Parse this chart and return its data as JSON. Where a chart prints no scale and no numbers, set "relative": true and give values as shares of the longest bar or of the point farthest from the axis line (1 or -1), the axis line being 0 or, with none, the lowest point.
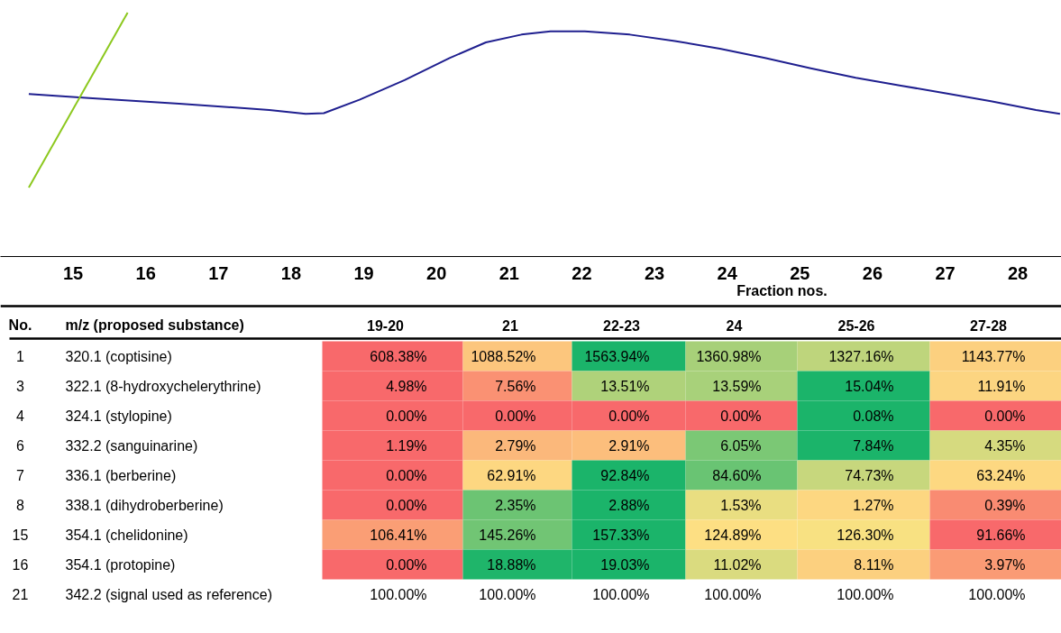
{
  "chart_data": [
    {
      "type": "line",
      "relative": true,
      "xlim": [
        14.0,
        28.6
      ],
      "tick_labels": "x",
      "grid": false,
      "xticks": [
        15,
        16,
        17,
        18,
        19,
        20,
        21,
        22,
        23,
        24,
        25,
        26,
        27,
        28
      ],
      "series": [
        {
          "color": "#1f1f8f",
          "x": [
            14.39,
            15.22,
            16.46,
            17.7,
            18.2,
            18.45,
            18.94,
            19.56,
            20.18,
            20.68,
            21.17,
            21.57,
            22.04,
            22.66,
            23.28,
            23.9,
            24.52,
            25.15,
            25.77,
            26.39,
            27.01,
            27.63,
            28.25,
            28.58
          ],
          "values": [
            0.666,
            0.65,
            0.627,
            0.601,
            0.585,
            0.588,
            0.643,
            0.723,
            0.814,
            0.878,
            0.91,
            0.923,
            0.923,
            0.91,
            0.884,
            0.852,
            0.814,
            0.772,
            0.733,
            0.701,
            0.669,
            0.637,
            0.601,
            0.585
          ]
        },
        {
          "color": "#8cc81e",
          "x": [
            14.39,
            15.75
          ],
          "values": [
            0.283,
            1
          ]
        }
      ]
    },
    {
      "type": "heatmap",
      "xlabel": "Fraction nos.",
      "annotations": [
        "No.",
        "m/z (proposed substance)"
      ],
      "categories": [
        "19-20",
        "21",
        "22-23",
        "24",
        "25-26",
        "27-28"
      ],
      "y2_categories": [
        "1",
        "3",
        "4",
        "6",
        "7",
        "8",
        "15",
        "16",
        "21"
      ],
      "y_categories": [
        "320.1 (coptisine)",
        "322.1 (8-hydroxychelerythrine)",
        "324.1 (stylopine)",
        "332.2 (sanguinarine)",
        "336.1 (berberine)",
        "338.1 (dihydroberberine)",
        "354.1 (chelidonine)",
        "354.1 (protopine)",
        "342.2 (signal used as reference)"
      ],
      "cells": [
        [
          608.38,
          1088.52,
          1563.94,
          1360.98,
          1327.16,
          1143.77
        ],
        [
          4.98,
          7.56,
          13.51,
          13.59,
          15.04,
          11.91
        ],
        [
          0,
          0,
          0,
          0,
          0.08,
          0
        ],
        [
          1.19,
          2.79,
          2.91,
          6.05,
          7.84,
          4.35
        ],
        [
          0,
          62.91,
          92.84,
          84.6,
          74.73,
          63.24
        ],
        [
          0,
          2.35,
          2.88,
          1.53,
          1.27,
          0.39
        ],
        [
          106.41,
          145.26,
          157.33,
          124.89,
          126.3,
          91.66
        ],
        [
          0,
          18.88,
          19.03,
          11.02,
          8.11,
          3.97
        ],
        [
          100,
          100,
          100,
          100,
          100,
          100
        ]
      ],
      "cell_labels": [
        [
          "608.38%",
          "1088.52%",
          "1563.94%",
          "1360.98%",
          "1327.16%",
          "1143.77%"
        ],
        [
          "4.98%",
          "7.56%",
          "13.51%",
          "13.59%",
          "15.04%",
          "11.91%"
        ],
        [
          "0.00%",
          "0.00%",
          "0.00%",
          "0.00%",
          "0.08%",
          "0.00%"
        ],
        [
          "1.19%",
          "2.79%",
          "2.91%",
          "6.05%",
          "7.84%",
          "4.35%"
        ],
        [
          "0.00%",
          "62.91%",
          "92.84%",
          "84.60%",
          "74.73%",
          "63.24%"
        ],
        [
          "0.00%",
          "2.35%",
          "2.88%",
          "1.53%",
          "1.27%",
          "0.39%"
        ],
        [
          "106.41%",
          "145.26%",
          "157.33%",
          "124.89%",
          "126.30%",
          "91.66%"
        ],
        [
          "0.00%",
          "18.88%",
          "19.03%",
          "11.02%",
          "8.11%",
          "3.97%"
        ],
        [
          "100.00%",
          "100.00%",
          "100.00%",
          "100.00%",
          "100.00%",
          "100.00%"
        ]
      ]
    }
  ]
}
